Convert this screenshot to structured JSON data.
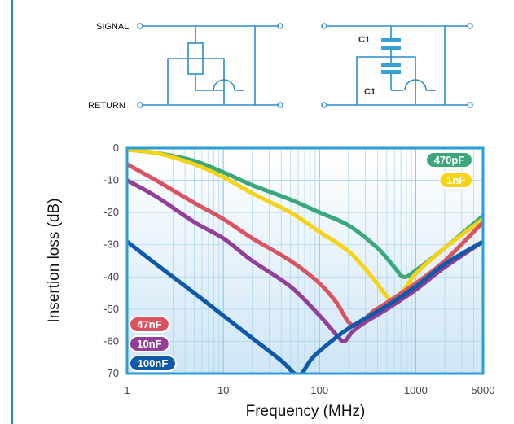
{
  "circuits": {
    "signal_label": "SIGNAL",
    "return_label": "RETURN",
    "cap_top_label": "C1",
    "cap_bottom_label": "C1",
    "wire_color": "#2b8ccc",
    "capacitor_color": "#3aa0d8"
  },
  "chart_data": {
    "type": "line",
    "xlabel": "Frequency (MHz)",
    "ylabel": "Insertion loss (dB)",
    "xscale": "log",
    "xlim": [
      1,
      5000
    ],
    "ylim": [
      -70,
      0
    ],
    "xticks": [
      1,
      10,
      100,
      1000,
      5000
    ],
    "xtick_labels": [
      "1",
      "10",
      "100",
      "1000",
      "5000"
    ],
    "yticks": [
      0,
      -10,
      -20,
      -30,
      -40,
      -50,
      -60,
      -70
    ],
    "ytick_labels": [
      "0",
      "-10",
      "-20",
      "-30",
      "-40",
      "-50",
      "-60",
      "-70"
    ],
    "grid": true,
    "background": "#cfe6f5",
    "frame_color": "#2b9ed8",
    "series": [
      {
        "name": "470pF",
        "color": "#3aa87a",
        "legend": "top-right",
        "x": [
          1,
          2,
          5,
          10,
          20,
          50,
          100,
          200,
          400,
          600,
          750,
          1000,
          2000,
          5000
        ],
        "y": [
          -0.5,
          -1.5,
          -4,
          -7.5,
          -11.5,
          -16,
          -20,
          -24,
          -31,
          -37,
          -40,
          -38,
          -31,
          -21
        ]
      },
      {
        "name": "1nF",
        "color": "#f5d316",
        "legend": "top-right",
        "x": [
          1,
          2,
          5,
          10,
          20,
          50,
          100,
          200,
          350,
          500,
          600,
          800,
          1000,
          2000,
          5000
        ],
        "y": [
          -0.5,
          -1.5,
          -5,
          -9,
          -14,
          -20,
          -26,
          -32,
          -40,
          -46,
          -47,
          -43,
          -39,
          -31,
          -22
        ]
      },
      {
        "name": "47nF",
        "color": "#d95462",
        "legend": "bottom-left",
        "x": [
          1,
          2,
          5,
          10,
          20,
          50,
          100,
          150,
          200,
          250,
          350,
          500,
          1000,
          2000,
          5000
        ],
        "y": [
          -5,
          -10,
          -17,
          -22,
          -28,
          -35,
          -42,
          -48,
          -54,
          -55,
          -51,
          -48,
          -42,
          -35,
          -23
        ]
      },
      {
        "name": "10nF",
        "color": "#933f9a",
        "legend": "bottom-left",
        "x": [
          1,
          2,
          5,
          10,
          20,
          50,
          100,
          150,
          180,
          220,
          300,
          500,
          1000,
          2000,
          5000
        ],
        "y": [
          -10,
          -15,
          -23,
          -28,
          -35,
          -43,
          -52,
          -58,
          -60,
          -57,
          -54,
          -50,
          -44,
          -37,
          -29
        ]
      },
      {
        "name": "100nF",
        "color": "#0f5aa8",
        "legend": "bottom-left",
        "x": [
          1,
          2,
          5,
          10,
          20,
          40,
          55,
          65,
          80,
          100,
          200,
          500,
          1000,
          2000,
          5000
        ],
        "y": [
          -29,
          -36,
          -45,
          -52,
          -59,
          -66,
          -70,
          -70,
          -66,
          -63,
          -56,
          -49,
          -43,
          -36,
          -29
        ]
      }
    ]
  }
}
